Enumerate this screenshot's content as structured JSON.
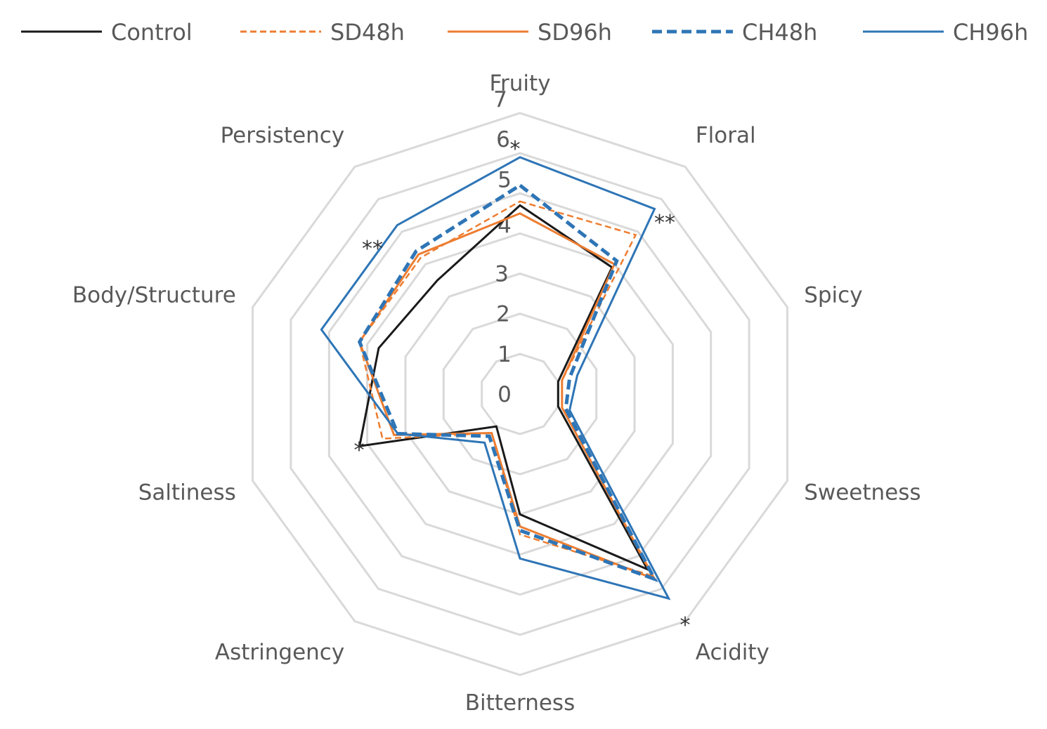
{
  "chart_data": {
    "type": "radar",
    "title": "",
    "axes": [
      "Fruity",
      "Floral",
      "Spicy",
      "Sweetness",
      "Acidity",
      "Bitterness",
      "Astringency",
      "Saltiness",
      "Body/Structure",
      "Persistency"
    ],
    "radial_ticks": [
      "0",
      "1",
      "2",
      "3",
      "4",
      "5",
      "6",
      "7"
    ],
    "r_range": [
      0,
      7
    ],
    "grid": true,
    "legend_position": "top",
    "series": [
      {
        "name": "Control",
        "color": "#1a1a1a",
        "dash": "solid",
        "values": [
          4.7,
          3.9,
          1.0,
          1.0,
          5.4,
          3.0,
          1.0,
          4.2,
          3.7,
          3.5
        ]
      },
      {
        "name": "SD48h",
        "color": "#ed7d31",
        "dash": "dashed",
        "values": [
          4.8,
          4.9,
          1.1,
          1.1,
          5.6,
          3.5,
          1.2,
          3.6,
          4.2,
          4.2
        ]
      },
      {
        "name": "SD96h",
        "color": "#ed7d31",
        "dash": "solid",
        "values": [
          4.5,
          4.0,
          1.1,
          1.1,
          5.7,
          3.3,
          1.2,
          3.3,
          4.2,
          4.3
        ]
      },
      {
        "name": "CH48h",
        "color": "#2e75b6",
        "dash": "dashed",
        "values": [
          5.2,
          4.1,
          1.3,
          1.2,
          5.7,
          3.4,
          1.3,
          3.2,
          4.2,
          4.4
        ]
      },
      {
        "name": "CH96h",
        "color": "#2e75b6",
        "dash": "solid",
        "values": [
          5.9,
          5.7,
          1.5,
          1.3,
          6.3,
          4.1,
          1.5,
          3.2,
          5.2,
          5.2
        ]
      }
    ],
    "annotations": [
      {
        "text": "*",
        "axis": "Fruity"
      },
      {
        "text": "**",
        "axis": "Floral"
      },
      {
        "text": "*",
        "axis": "Acidity"
      },
      {
        "text": "*",
        "axis": "Saltiness"
      },
      {
        "text": "**",
        "axis": "Persistency"
      }
    ]
  }
}
